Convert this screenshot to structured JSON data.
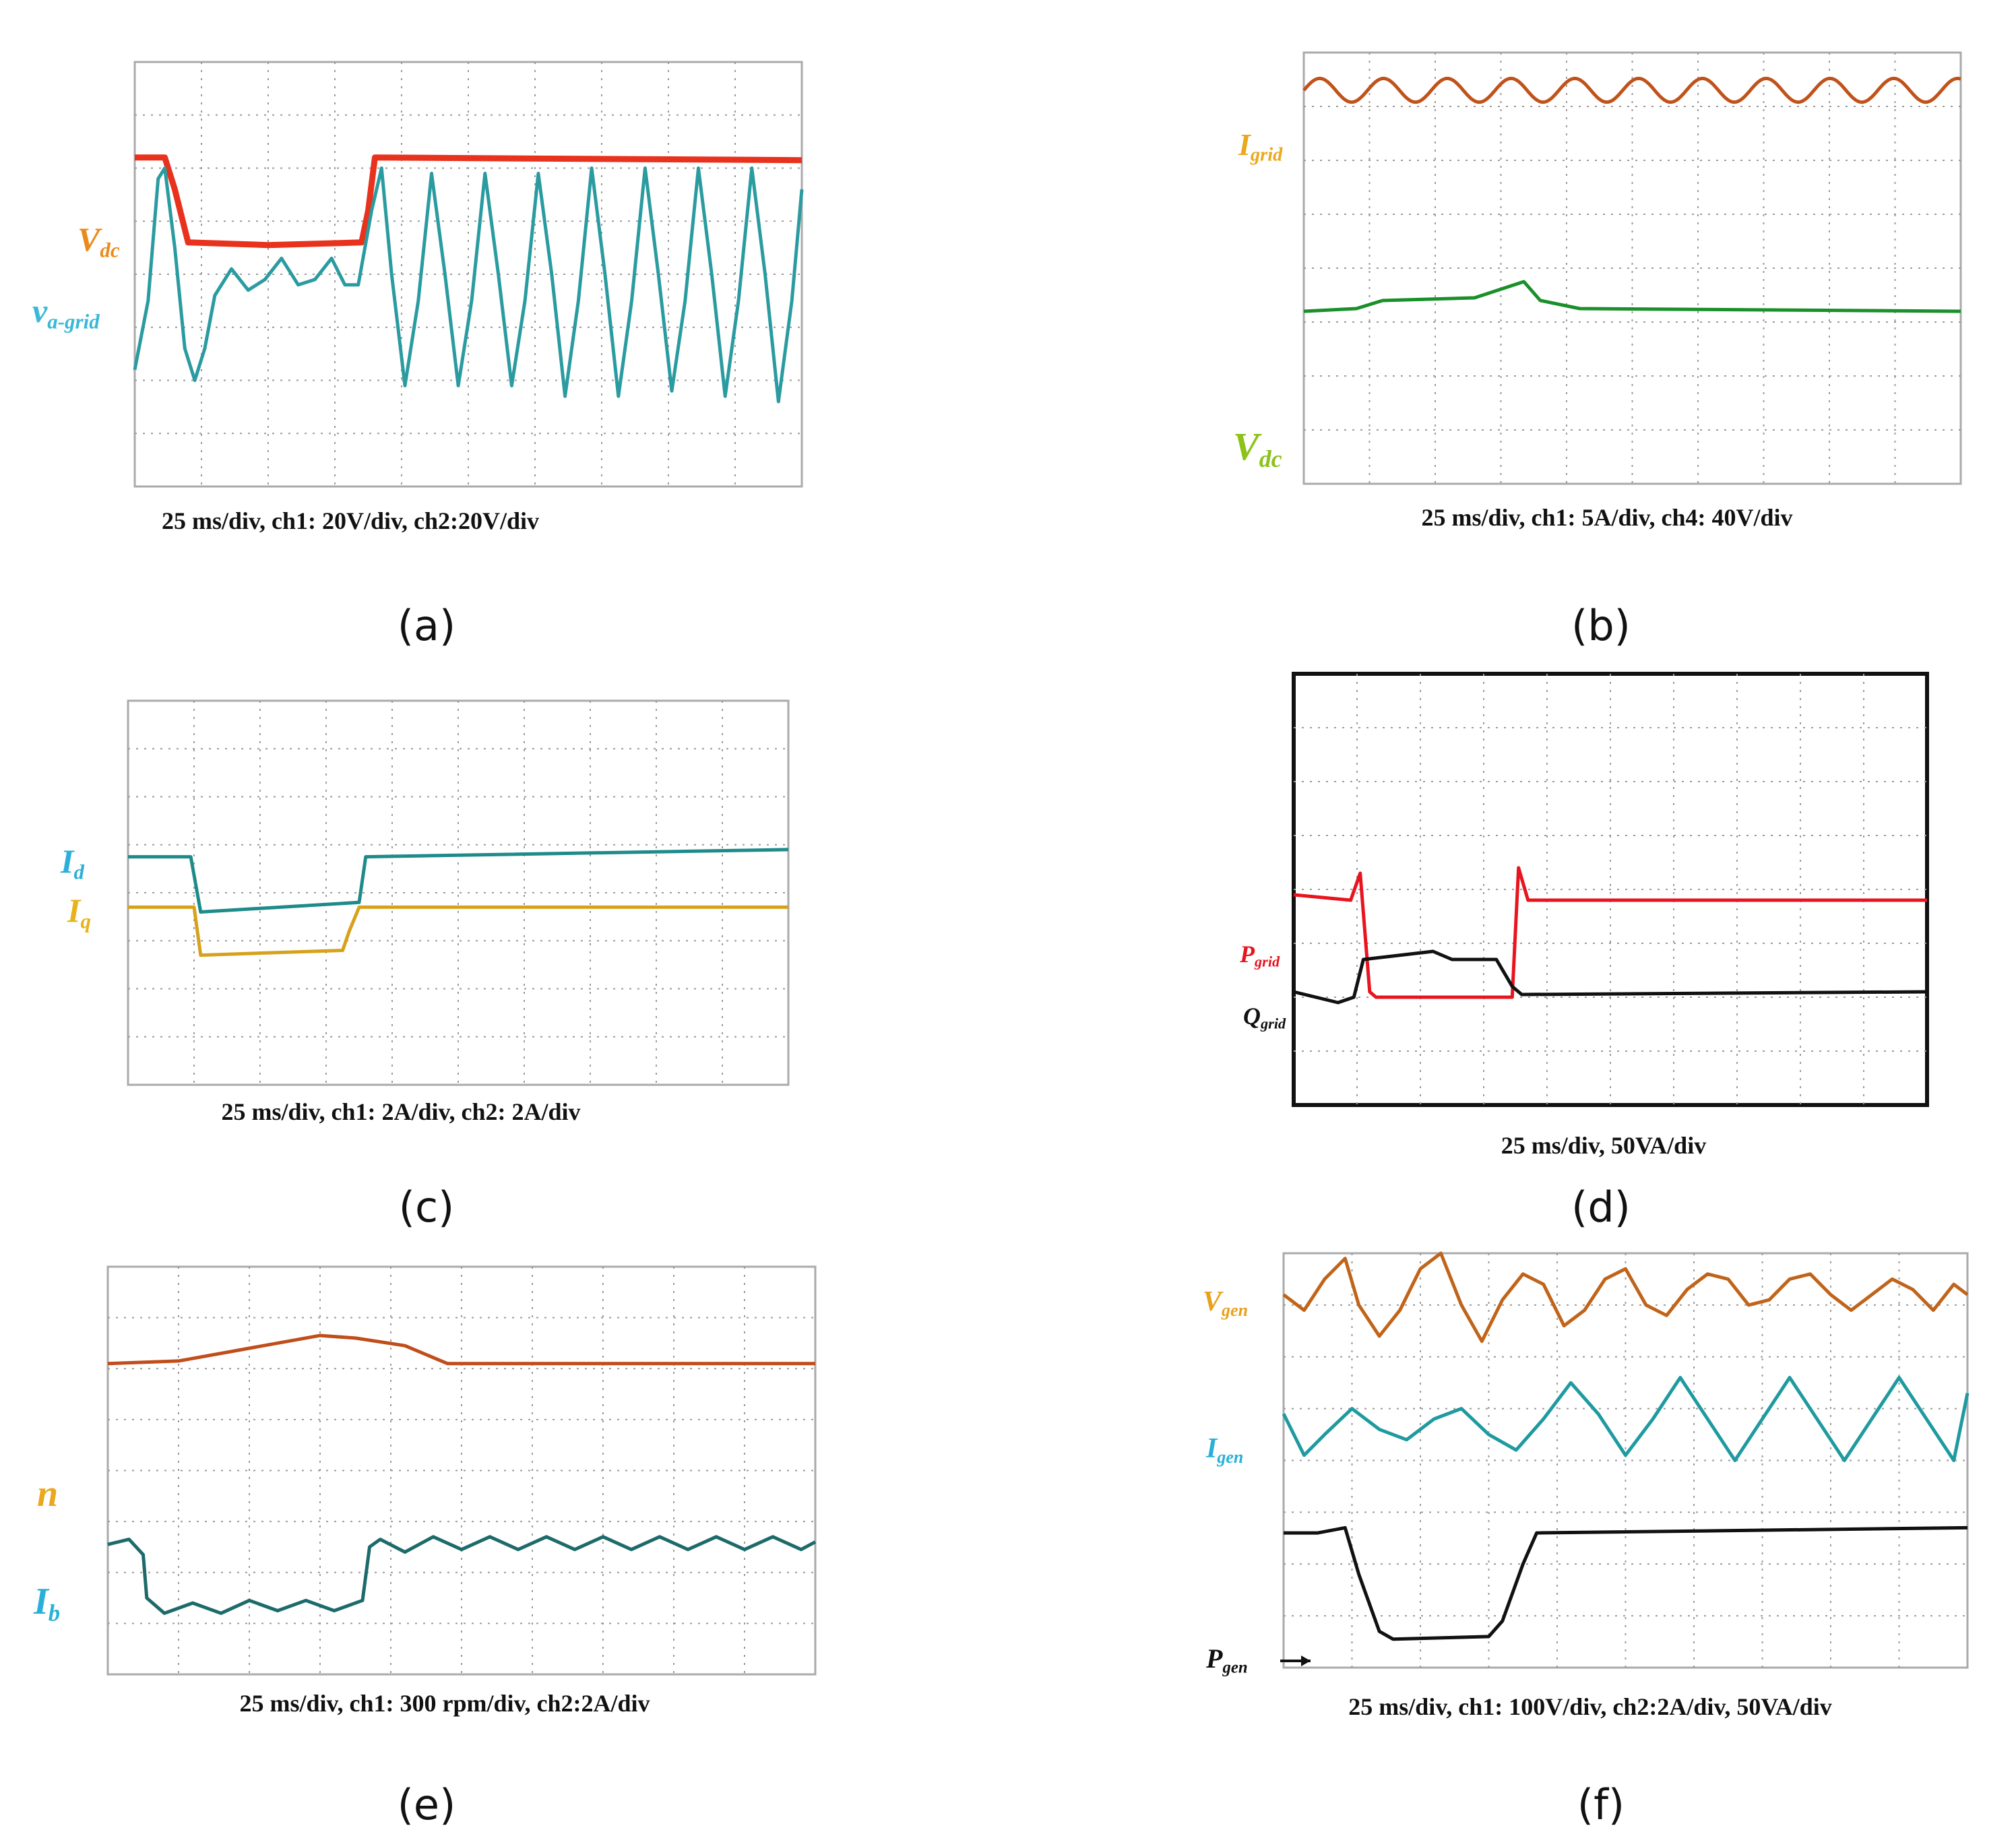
{
  "chart_data": [
    {
      "id": "a",
      "type": "line",
      "panel_label": "(a)",
      "caption": "25 ms/div, ch1: 20V/div, ch2:20V/div",
      "grid": {
        "divisions_x": 10,
        "divisions_y": 8
      },
      "series": [
        {
          "name": "V_dc",
          "label_main": "V",
          "label_sub": "dc",
          "color": "#e8321e",
          "label_color": "#ea8a1c",
          "points": [
            [
              0,
              6.2
            ],
            [
              0.45,
              6.2
            ],
            [
              0.6,
              5.6
            ],
            [
              0.8,
              4.6
            ],
            [
              2.0,
              4.55
            ],
            [
              3.4,
              4.6
            ],
            [
              3.5,
              5.2
            ],
            [
              3.6,
              6.2
            ],
            [
              10,
              6.15
            ]
          ]
        },
        {
          "name": "v_a-grid",
          "label_main": "v",
          "label_sub": "a-grid",
          "color": "#2a9ba0",
          "label_color": "#3ab8d8",
          "points": [
            [
              0,
              2.2
            ],
            [
              0.2,
              3.5
            ],
            [
              0.35,
              5.8
            ],
            [
              0.45,
              6.0
            ],
            [
              0.6,
              4.5
            ],
            [
              0.75,
              2.6
            ],
            [
              0.9,
              2.0
            ],
            [
              1.05,
              2.6
            ],
            [
              1.2,
              3.6
            ],
            [
              1.45,
              4.1
            ],
            [
              1.7,
              3.7
            ],
            [
              1.95,
              3.9
            ],
            [
              2.2,
              4.3
            ],
            [
              2.45,
              3.8
            ],
            [
              2.7,
              3.9
            ],
            [
              2.95,
              4.3
            ],
            [
              3.15,
              3.8
            ],
            [
              3.35,
              3.8
            ],
            [
              3.55,
              5.2
            ],
            [
              3.7,
              6.0
            ],
            [
              3.85,
              4.0
            ],
            [
              4.05,
              1.9
            ],
            [
              4.25,
              3.5
            ],
            [
              4.45,
              5.9
            ],
            [
              4.65,
              4.0
            ],
            [
              4.85,
              1.9
            ],
            [
              5.05,
              3.5
            ],
            [
              5.25,
              5.9
            ],
            [
              5.45,
              4.0
            ],
            [
              5.65,
              1.9
            ],
            [
              5.85,
              3.5
            ],
            [
              6.05,
              5.9
            ],
            [
              6.25,
              4.0
            ],
            [
              6.45,
              1.7
            ],
            [
              6.65,
              3.5
            ],
            [
              6.85,
              6.0
            ],
            [
              7.05,
              4.0
            ],
            [
              7.25,
              1.7
            ],
            [
              7.45,
              3.5
            ],
            [
              7.65,
              6.0
            ],
            [
              7.85,
              4.0
            ],
            [
              8.05,
              1.8
            ],
            [
              8.25,
              3.5
            ],
            [
              8.45,
              6.0
            ],
            [
              8.65,
              4.0
            ],
            [
              8.85,
              1.7
            ],
            [
              9.05,
              3.5
            ],
            [
              9.25,
              6.0
            ],
            [
              9.45,
              4.0
            ],
            [
              9.65,
              1.6
            ],
            [
              9.85,
              3.5
            ],
            [
              10,
              5.6
            ]
          ]
        }
      ]
    },
    {
      "id": "b",
      "type": "line",
      "panel_label": "(b)",
      "caption": "25 ms/div, ch1: 5A/div, ch4: 40V/div",
      "grid": {
        "divisions_x": 10,
        "divisions_y": 8
      },
      "series": [
        {
          "name": "I_grid",
          "label_main": "I",
          "label_sub": "grid",
          "color": "#c0521a",
          "label_color": "#e9a81e",
          "points": "sine",
          "sine": {
            "offset": 7.3,
            "amp": 0.22,
            "cycles": 10.3
          }
        },
        {
          "name": "V_dc",
          "label_main": "V",
          "label_sub": "dc",
          "color": "#1a8f2a",
          "label_color": "#8cc21a",
          "points": [
            [
              0,
              3.2
            ],
            [
              0.8,
              3.25
            ],
            [
              1.2,
              3.4
            ],
            [
              2.6,
              3.45
            ],
            [
              3.35,
              3.75
            ],
            [
              3.6,
              3.4
            ],
            [
              4.2,
              3.25
            ],
            [
              10,
              3.2
            ]
          ]
        }
      ]
    },
    {
      "id": "c",
      "type": "line",
      "panel_label": "(c)",
      "caption": "25 ms/div, ch1: 2A/div, ch2: 2A/div",
      "grid": {
        "divisions_x": 10,
        "divisions_y": 8
      },
      "series": [
        {
          "name": "I_d",
          "label_main": "I",
          "label_sub": "d",
          "color": "#1e8a8a",
          "label_color": "#2ab0d8",
          "points": [
            [
              0,
              4.75
            ],
            [
              0.95,
              4.75
            ],
            [
              1.1,
              3.6
            ],
            [
              3.5,
              3.8
            ],
            [
              3.6,
              4.75
            ],
            [
              10,
              4.9
            ]
          ]
        },
        {
          "name": "I_q",
          "label_main": "I",
          "label_sub": "q",
          "color": "#d6a21c",
          "label_color": "#e8b21c",
          "points": [
            [
              0,
              3.7
            ],
            [
              1.0,
              3.7
            ],
            [
              1.1,
              2.7
            ],
            [
              3.25,
              2.8
            ],
            [
              3.35,
              3.2
            ],
            [
              3.5,
              3.7
            ],
            [
              10,
              3.7
            ]
          ]
        }
      ]
    },
    {
      "id": "d",
      "type": "line",
      "panel_label": "(d)",
      "caption": "25 ms/div, 50VA/div",
      "grid": {
        "divisions_x": 10,
        "divisions_y": 8
      },
      "series": [
        {
          "name": "P_grid",
          "label_main": "P",
          "label_sub": "grid",
          "color": "#e8141e",
          "label_color": "#e8141e",
          "points": [
            [
              0,
              3.9
            ],
            [
              0.9,
              3.8
            ],
            [
              1.05,
              4.3
            ],
            [
              1.2,
              2.1
            ],
            [
              1.3,
              2.0
            ],
            [
              3.45,
              2.0
            ],
            [
              3.55,
              4.4
            ],
            [
              3.7,
              3.8
            ],
            [
              10,
              3.8
            ]
          ]
        },
        {
          "name": "Q_grid",
          "label_main": "Q",
          "label_sub": "grid",
          "color": "#111111",
          "label_color": "#111111",
          "points": [
            [
              0,
              2.1
            ],
            [
              0.7,
              1.9
            ],
            [
              0.95,
              2.0
            ],
            [
              1.1,
              2.7
            ],
            [
              2.2,
              2.85
            ],
            [
              2.5,
              2.7
            ],
            [
              3.2,
              2.7
            ],
            [
              3.45,
              2.2
            ],
            [
              3.6,
              2.05
            ],
            [
              10,
              2.1
            ]
          ]
        }
      ]
    },
    {
      "id": "e",
      "type": "line",
      "panel_label": "(e)",
      "caption": "25 ms/div, ch1: 300 rpm/div, ch2:2A/div",
      "grid": {
        "divisions_x": 10,
        "divisions_y": 8
      },
      "series": [
        {
          "name": "n",
          "label_main": "n",
          "label_sub": "",
          "color": "#c04d1a",
          "label_color": "#e9a81e",
          "points": [
            [
              0,
              6.1
            ],
            [
              1.0,
              6.15
            ],
            [
              2.0,
              6.4
            ],
            [
              3.0,
              6.65
            ],
            [
              3.5,
              6.6
            ],
            [
              4.2,
              6.45
            ],
            [
              4.8,
              6.1
            ],
            [
              10,
              6.1
            ]
          ]
        },
        {
          "name": "I_b",
          "label_main": "I",
          "label_sub": "b",
          "color": "#1c6a6a",
          "label_color": "#2ab0d8",
          "points": [
            [
              0,
              2.55
            ],
            [
              0.3,
              2.65
            ],
            [
              0.5,
              2.35
            ],
            [
              0.55,
              1.5
            ],
            [
              0.8,
              1.2
            ],
            [
              1.2,
              1.4
            ],
            [
              1.6,
              1.2
            ],
            [
              2.0,
              1.45
            ],
            [
              2.4,
              1.25
            ],
            [
              2.8,
              1.45
            ],
            [
              3.2,
              1.25
            ],
            [
              3.6,
              1.45
            ],
            [
              3.7,
              2.5
            ],
            [
              3.85,
              2.65
            ],
            [
              4.2,
              2.4
            ],
            [
              4.6,
              2.7
            ],
            [
              5.0,
              2.45
            ],
            [
              5.4,
              2.7
            ],
            [
              5.8,
              2.45
            ],
            [
              6.2,
              2.7
            ],
            [
              6.6,
              2.45
            ],
            [
              7.0,
              2.7
            ],
            [
              7.4,
              2.45
            ],
            [
              7.8,
              2.7
            ],
            [
              8.2,
              2.45
            ],
            [
              8.6,
              2.7
            ],
            [
              9.0,
              2.45
            ],
            [
              9.4,
              2.7
            ],
            [
              9.8,
              2.45
            ],
            [
              10,
              2.6
            ]
          ]
        }
      ]
    },
    {
      "id": "f",
      "type": "line",
      "panel_label": "(f)",
      "caption": "25 ms/div, ch1: 100V/div, ch2:2A/div, 50VA/div",
      "grid": {
        "divisions_x": 10,
        "divisions_y": 8
      },
      "series": [
        {
          "name": "V_gen",
          "label_main": "V",
          "label_sub": "gen",
          "color": "#c0641a",
          "label_color": "#e8a11c",
          "points": [
            [
              0,
              7.2
            ],
            [
              0.3,
              6.9
            ],
            [
              0.6,
              7.5
            ],
            [
              0.9,
              7.9
            ],
            [
              1.1,
              7.0
            ],
            [
              1.4,
              6.4
            ],
            [
              1.7,
              6.9
            ],
            [
              2.0,
              7.7
            ],
            [
              2.3,
              8.0
            ],
            [
              2.6,
              7.0
            ],
            [
              2.9,
              6.3
            ],
            [
              3.2,
              7.1
            ],
            [
              3.5,
              7.6
            ],
            [
              3.8,
              7.4
            ],
            [
              4.1,
              6.6
            ],
            [
              4.4,
              6.9
            ],
            [
              4.7,
              7.5
            ],
            [
              5.0,
              7.7
            ],
            [
              5.3,
              7.0
            ],
            [
              5.6,
              6.8
            ],
            [
              5.9,
              7.3
            ],
            [
              6.2,
              7.6
            ],
            [
              6.5,
              7.5
            ],
            [
              6.8,
              7.0
            ],
            [
              7.1,
              7.1
            ],
            [
              7.4,
              7.5
            ],
            [
              7.7,
              7.6
            ],
            [
              8.0,
              7.2
            ],
            [
              8.3,
              6.9
            ],
            [
              8.6,
              7.2
            ],
            [
              8.9,
              7.5
            ],
            [
              9.2,
              7.3
            ],
            [
              9.5,
              6.9
            ],
            [
              9.8,
              7.4
            ],
            [
              10,
              7.2
            ]
          ]
        },
        {
          "name": "I_gen",
          "label_main": "I",
          "label_sub": "gen",
          "color": "#1e9aa0",
          "label_color": "#2ab0d8",
          "points": [
            [
              0,
              4.9
            ],
            [
              0.3,
              4.1
            ],
            [
              0.6,
              4.5
            ],
            [
              1.0,
              5.0
            ],
            [
              1.4,
              4.6
            ],
            [
              1.8,
              4.4
            ],
            [
              2.2,
              4.8
            ],
            [
              2.6,
              5.0
            ],
            [
              3.0,
              4.5
            ],
            [
              3.4,
              4.2
            ],
            [
              3.8,
              4.8
            ],
            [
              4.2,
              5.5
            ],
            [
              4.6,
              4.9
            ],
            [
              5.0,
              4.1
            ],
            [
              5.4,
              4.8
            ],
            [
              5.8,
              5.6
            ],
            [
              6.2,
              4.8
            ],
            [
              6.6,
              4.0
            ],
            [
              7.0,
              4.8
            ],
            [
              7.4,
              5.6
            ],
            [
              7.8,
              4.8
            ],
            [
              8.2,
              4.0
            ],
            [
              8.6,
              4.8
            ],
            [
              9.0,
              5.6
            ],
            [
              9.4,
              4.8
            ],
            [
              9.8,
              4.0
            ],
            [
              10,
              5.3
            ]
          ]
        },
        {
          "name": "P_gen",
          "label_main": "P",
          "label_sub": "gen",
          "color": "#111111",
          "label_color": "#111111",
          "points": [
            [
              0,
              2.6
            ],
            [
              0.5,
              2.6
            ],
            [
              0.9,
              2.7
            ],
            [
              1.1,
              1.8
            ],
            [
              1.4,
              0.7
            ],
            [
              1.6,
              0.55
            ],
            [
              3.0,
              0.6
            ],
            [
              3.2,
              0.9
            ],
            [
              3.5,
              2.0
            ],
            [
              3.7,
              2.6
            ],
            [
              10,
              2.7
            ]
          ]
        }
      ]
    }
  ]
}
